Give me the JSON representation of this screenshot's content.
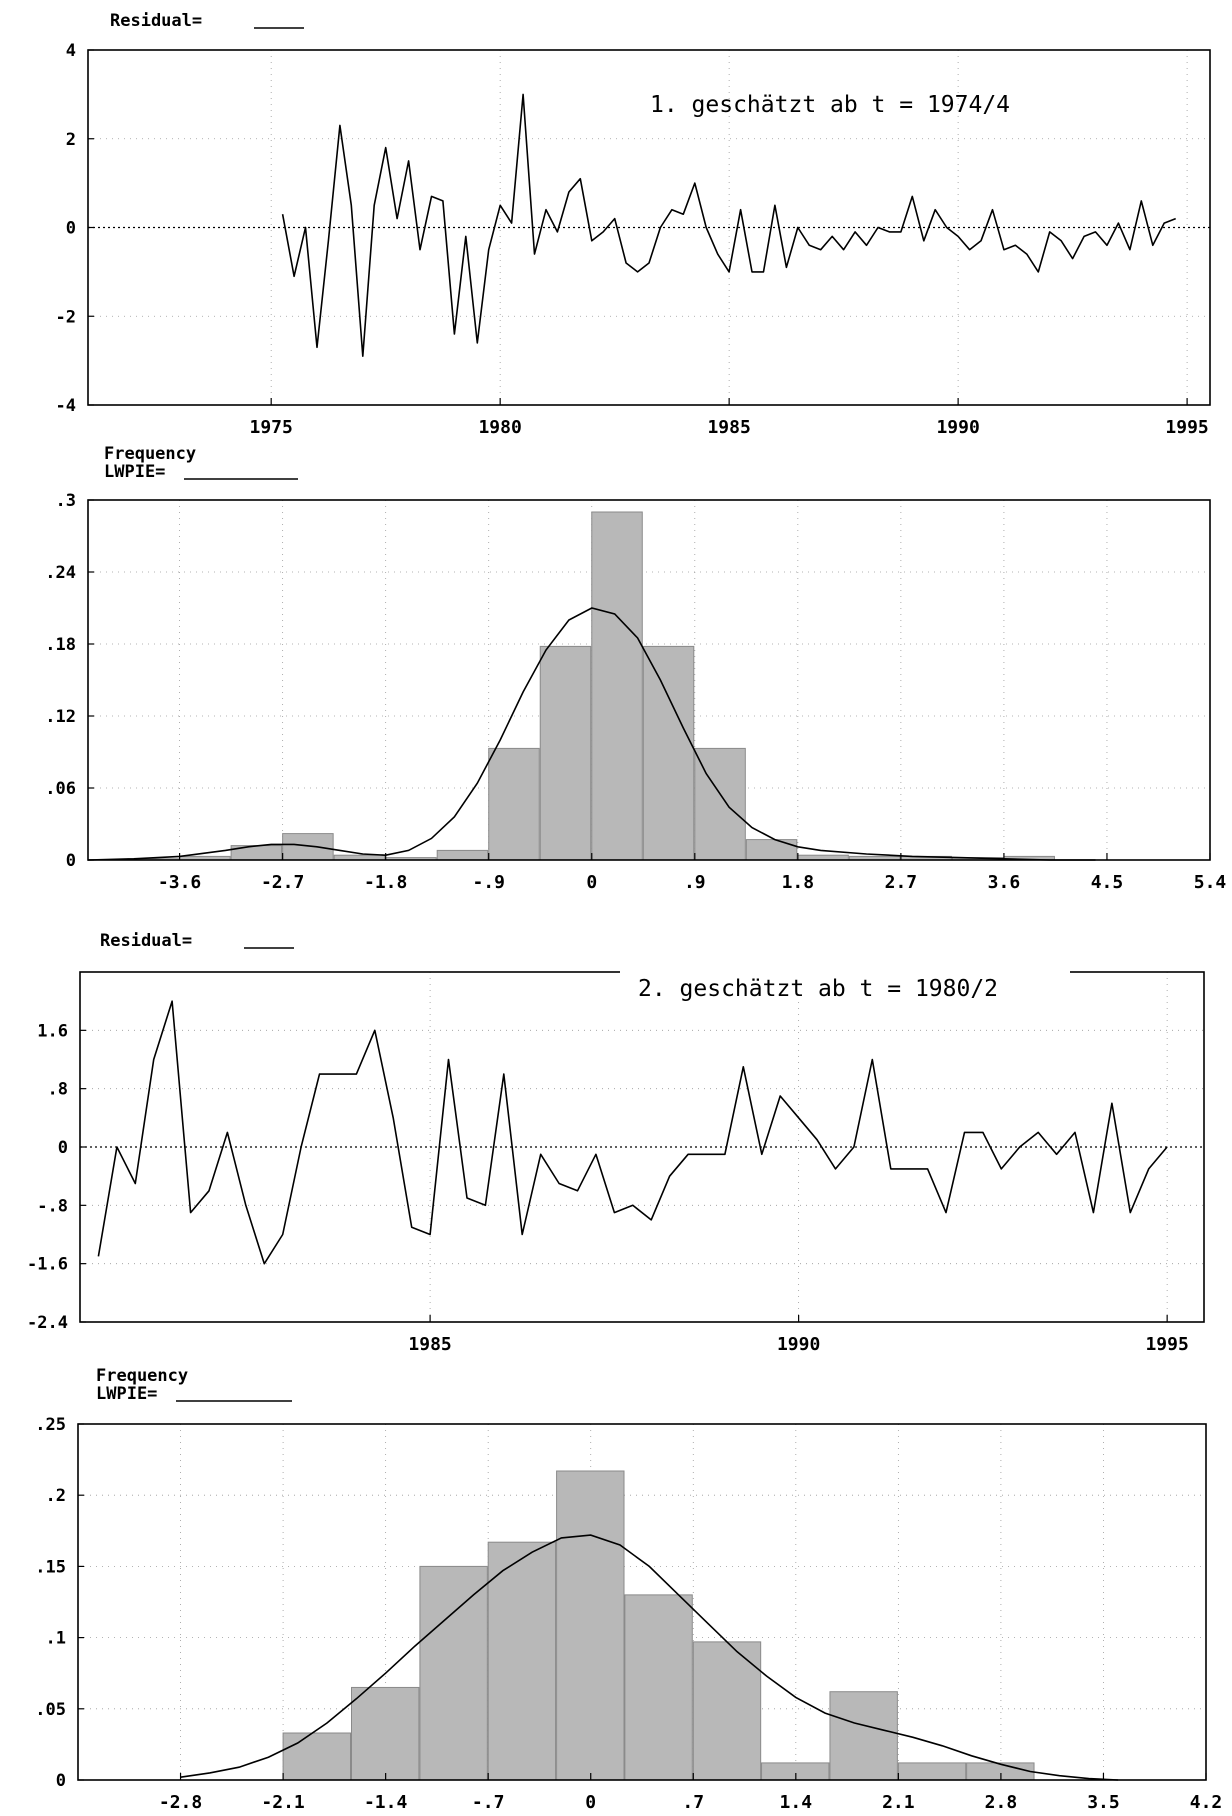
{
  "chart_data": [
    {
      "type": "line",
      "title": "1. geschätzt ab t = 1974/4",
      "ylabel": "Residual=",
      "ylim": [
        -4,
        4
      ],
      "yticks": [
        4,
        2,
        0,
        -2,
        -4
      ],
      "ytick_labels": [
        "4",
        "2",
        "0",
        "-2",
        "-4"
      ],
      "xlim": [
        1971,
        1995.5
      ],
      "xticks": [
        1975,
        1980,
        1985,
        1990,
        1995
      ],
      "xtick_labels": [
        "1975",
        "1980",
        "1985",
        "1990",
        "1995"
      ],
      "grid": true,
      "zero_line": true,
      "series": [
        {
          "x_start": 1975.25,
          "step": 0.25,
          "values": [
            0.3,
            -1.1,
            0.0,
            -2.7,
            -0.3,
            2.3,
            0.5,
            -2.9,
            0.5,
            1.8,
            0.2,
            1.5,
            -0.5,
            0.7,
            0.6,
            -2.4,
            -0.2,
            -2.6,
            -0.5,
            0.5,
            0.1,
            3.0,
            -0.6,
            0.4,
            -0.1,
            0.8,
            1.1,
            -0.3,
            -0.1,
            0.2,
            -0.8,
            -1.0,
            -0.8,
            0.0,
            0.4,
            0.3,
            1.0,
            0.0,
            -0.6,
            -1.0,
            0.4,
            -1.0,
            -1.0,
            0.5,
            -0.9,
            0.0,
            -0.4,
            -0.5,
            -0.2,
            -0.5,
            -0.1,
            -0.4,
            0.0,
            -0.1,
            -0.1,
            0.7,
            -0.3,
            0.4,
            0.0,
            -0.2,
            -0.5,
            -0.3,
            0.4,
            -0.5,
            -0.4,
            -0.6,
            -1.0,
            -0.1,
            -0.3,
            -0.7,
            -0.2,
            -0.1,
            -0.4,
            0.1,
            -0.5,
            0.6,
            -0.4,
            0.1,
            0.2
          ]
        }
      ]
    },
    {
      "type": "bar",
      "title": "",
      "ylabel": "Frequency",
      "legend_label": "LWPIE=",
      "ylim": [
        0,
        0.3
      ],
      "yticks": [
        0.3,
        0.24,
        0.18,
        0.12,
        0.06,
        0
      ],
      "ytick_labels": [
        ".3",
        ".24",
        ".18",
        ".12",
        ".06",
        "0"
      ],
      "xlim": [
        -4.4,
        5.4
      ],
      "xticks": [
        -3.6,
        -2.7,
        -1.8,
        -0.9,
        0,
        0.9,
        1.8,
        2.7,
        3.6,
        4.5,
        5.4
      ],
      "xtick_labels": [
        "-3.6",
        "-2.7",
        "-1.8",
        "-.9",
        "0",
        ".9",
        "1.8",
        "2.7",
        "3.6",
        "4.5",
        "5.4"
      ],
      "grid": true,
      "bin_width": 0.45,
      "bins": [
        -4.05,
        -3.6,
        -3.15,
        -2.7,
        -2.25,
        -1.8,
        -1.35,
        -0.9,
        -0.45,
        0,
        0.45,
        0.9,
        1.35,
        1.8,
        2.25,
        2.7,
        3.15,
        3.6
      ],
      "values": [
        0.001,
        0.003,
        0.012,
        0.022,
        0.004,
        0.002,
        0.008,
        0.093,
        0.178,
        0.29,
        0.178,
        0.093,
        0.017,
        0.004,
        0.003,
        0.003,
        0.002,
        0.003
      ],
      "density": {
        "x": [
          -4.4,
          -4.0,
          -3.6,
          -3.2,
          -3.0,
          -2.8,
          -2.6,
          -2.4,
          -2.2,
          -2.0,
          -1.8,
          -1.6,
          -1.4,
          -1.2,
          -1.0,
          -0.8,
          -0.6,
          -0.4,
          -0.2,
          0,
          0.2,
          0.4,
          0.6,
          0.8,
          1.0,
          1.2,
          1.4,
          1.6,
          1.8,
          2.0,
          2.4,
          2.8,
          3.2,
          3.6,
          4.0,
          4.4
        ],
        "y": [
          0.0,
          0.001,
          0.003,
          0.008,
          0.011,
          0.013,
          0.013,
          0.011,
          0.008,
          0.005,
          0.004,
          0.008,
          0.018,
          0.036,
          0.064,
          0.1,
          0.14,
          0.175,
          0.2,
          0.21,
          0.205,
          0.185,
          0.15,
          0.11,
          0.072,
          0.044,
          0.027,
          0.017,
          0.011,
          0.008,
          0.005,
          0.003,
          0.002,
          0.001,
          0.0,
          0.0
        ]
      }
    },
    {
      "type": "line",
      "title": "2. geschätzt ab t = 1980/2",
      "ylabel": "Residual=",
      "ylim": [
        -2.4,
        2.4
      ],
      "yticks": [
        1.6,
        0.8,
        0,
        -0.8,
        -1.6,
        -2.4
      ],
      "ytick_labels": [
        "1.6",
        ".8",
        "0",
        "-.8",
        "-1.6",
        "-2.4"
      ],
      "xlim": [
        1980.25,
        1995.5
      ],
      "xticks": [
        1985,
        1990,
        1995
      ],
      "xtick_labels": [
        "1985",
        "1990",
        "1995"
      ],
      "grid": true,
      "zero_line": true,
      "series": [
        {
          "x_start": 1980.5,
          "step": 0.25,
          "values": [
            -1.5,
            0.0,
            -0.5,
            1.2,
            2.0,
            -0.9,
            -0.6,
            0.2,
            -0.8,
            -1.6,
            -1.2,
            0.0,
            1.0,
            1.0,
            1.0,
            1.6,
            0.4,
            -1.1,
            -1.2,
            1.2,
            -0.7,
            -0.8,
            1.0,
            -1.2,
            -0.1,
            -0.5,
            -0.6,
            -0.1,
            -0.9,
            -0.8,
            -1.0,
            -0.4,
            -0.1,
            -0.1,
            -0.1,
            1.1,
            -0.1,
            0.7,
            0.4,
            0.1,
            -0.3,
            0.0,
            1.2,
            -0.3,
            -0.3,
            -0.3,
            -0.9,
            0.2,
            0.2,
            -0.3,
            0.0,
            0.2,
            -0.1,
            0.2,
            -0.9,
            0.6,
            -0.9,
            -0.3,
            0.0
          ]
        }
      ]
    },
    {
      "type": "bar",
      "title": "",
      "ylabel": "Frequency",
      "legend_label": "LWPIE=",
      "ylim": [
        0,
        0.25
      ],
      "yticks": [
        0.25,
        0.2,
        0.15,
        0.1,
        0.05,
        0
      ],
      "ytick_labels": [
        ".25",
        ".2",
        ".15",
        ".1",
        ".05",
        "0"
      ],
      "xlim": [
        -3.5,
        4.2
      ],
      "xticks": [
        -2.8,
        -2.1,
        -1.4,
        -0.7,
        0,
        0.7,
        1.4,
        2.1,
        2.8,
        3.5,
        4.2
      ],
      "xtick_labels": [
        "-2.8",
        "-2.1",
        "-1.4",
        "-.7",
        "0",
        ".7",
        "1.4",
        "2.1",
        "2.8",
        "3.5",
        "4.2"
      ],
      "grid": true,
      "bin_width": 0.467,
      "bins": [
        -2.1,
        -1.633,
        -1.166,
        -0.7,
        -0.233,
        0.233,
        0.7,
        1.166,
        1.633,
        2.1,
        2.566
      ],
      "values": [
        0.033,
        0.065,
        0.15,
        0.167,
        0.217,
        0.13,
        0.097,
        0.012,
        0.062,
        0.012,
        0.012
      ],
      "density": {
        "x": [
          -2.8,
          -2.6,
          -2.4,
          -2.2,
          -2.0,
          -1.8,
          -1.6,
          -1.4,
          -1.2,
          -1.0,
          -0.8,
          -0.6,
          -0.4,
          -0.2,
          0,
          0.2,
          0.4,
          0.6,
          0.8,
          1.0,
          1.2,
          1.4,
          1.6,
          1.8,
          2.0,
          2.2,
          2.4,
          2.6,
          2.8,
          3.0,
          3.2,
          3.4,
          3.6
        ],
        "y": [
          0.002,
          0.005,
          0.009,
          0.016,
          0.026,
          0.04,
          0.057,
          0.075,
          0.094,
          0.112,
          0.13,
          0.147,
          0.16,
          0.17,
          0.172,
          0.165,
          0.15,
          0.13,
          0.11,
          0.09,
          0.073,
          0.058,
          0.047,
          0.04,
          0.035,
          0.03,
          0.024,
          0.017,
          0.011,
          0.006,
          0.003,
          0.001,
          0.0
        ]
      }
    }
  ]
}
